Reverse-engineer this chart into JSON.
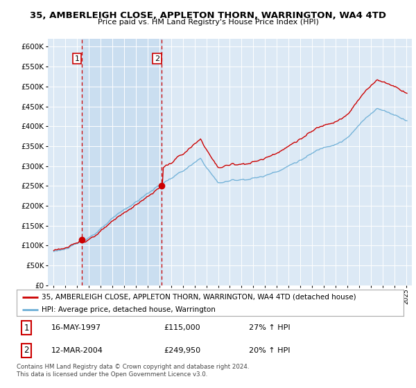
{
  "title": "35, AMBERLEIGH CLOSE, APPLETON THORN, WARRINGTON, WA4 4TD",
  "subtitle": "Price paid vs. HM Land Registry's House Price Index (HPI)",
  "legend_line1": "35, AMBERLEIGH CLOSE, APPLETON THORN, WARRINGTON, WA4 4TD (detached house)",
  "legend_line2": "HPI: Average price, detached house, Warrington",
  "purchase1_label": "1",
  "purchase1_date": "16-MAY-1997",
  "purchase1_price": "£115,000",
  "purchase1_hpi": "27% ↑ HPI",
  "purchase1_year": 1997.37,
  "purchase1_value": 115000,
  "purchase2_label": "2",
  "purchase2_date": "12-MAR-2004",
  "purchase2_price": "£249,950",
  "purchase2_hpi": "20% ↑ HPI",
  "purchase2_year": 2004.19,
  "purchase2_value": 249950,
  "hpi_color": "#6baed6",
  "price_color": "#cc0000",
  "dot_color": "#cc0000",
  "vline_color": "#cc0000",
  "shade_color": "#dce9f5",
  "plot_bg": "#dce9f5",
  "grid_color": "#ffffff",
  "footer_text": "Contains HM Land Registry data © Crown copyright and database right 2024.\nThis data is licensed under the Open Government Licence v3.0.",
  "ylim_min": 0,
  "ylim_max": 620000,
  "yticks": [
    0,
    50000,
    100000,
    150000,
    200000,
    250000,
    300000,
    350000,
    400000,
    450000,
    500000,
    550000,
    600000
  ],
  "xlim_min": 1994.5,
  "xlim_max": 2025.5
}
